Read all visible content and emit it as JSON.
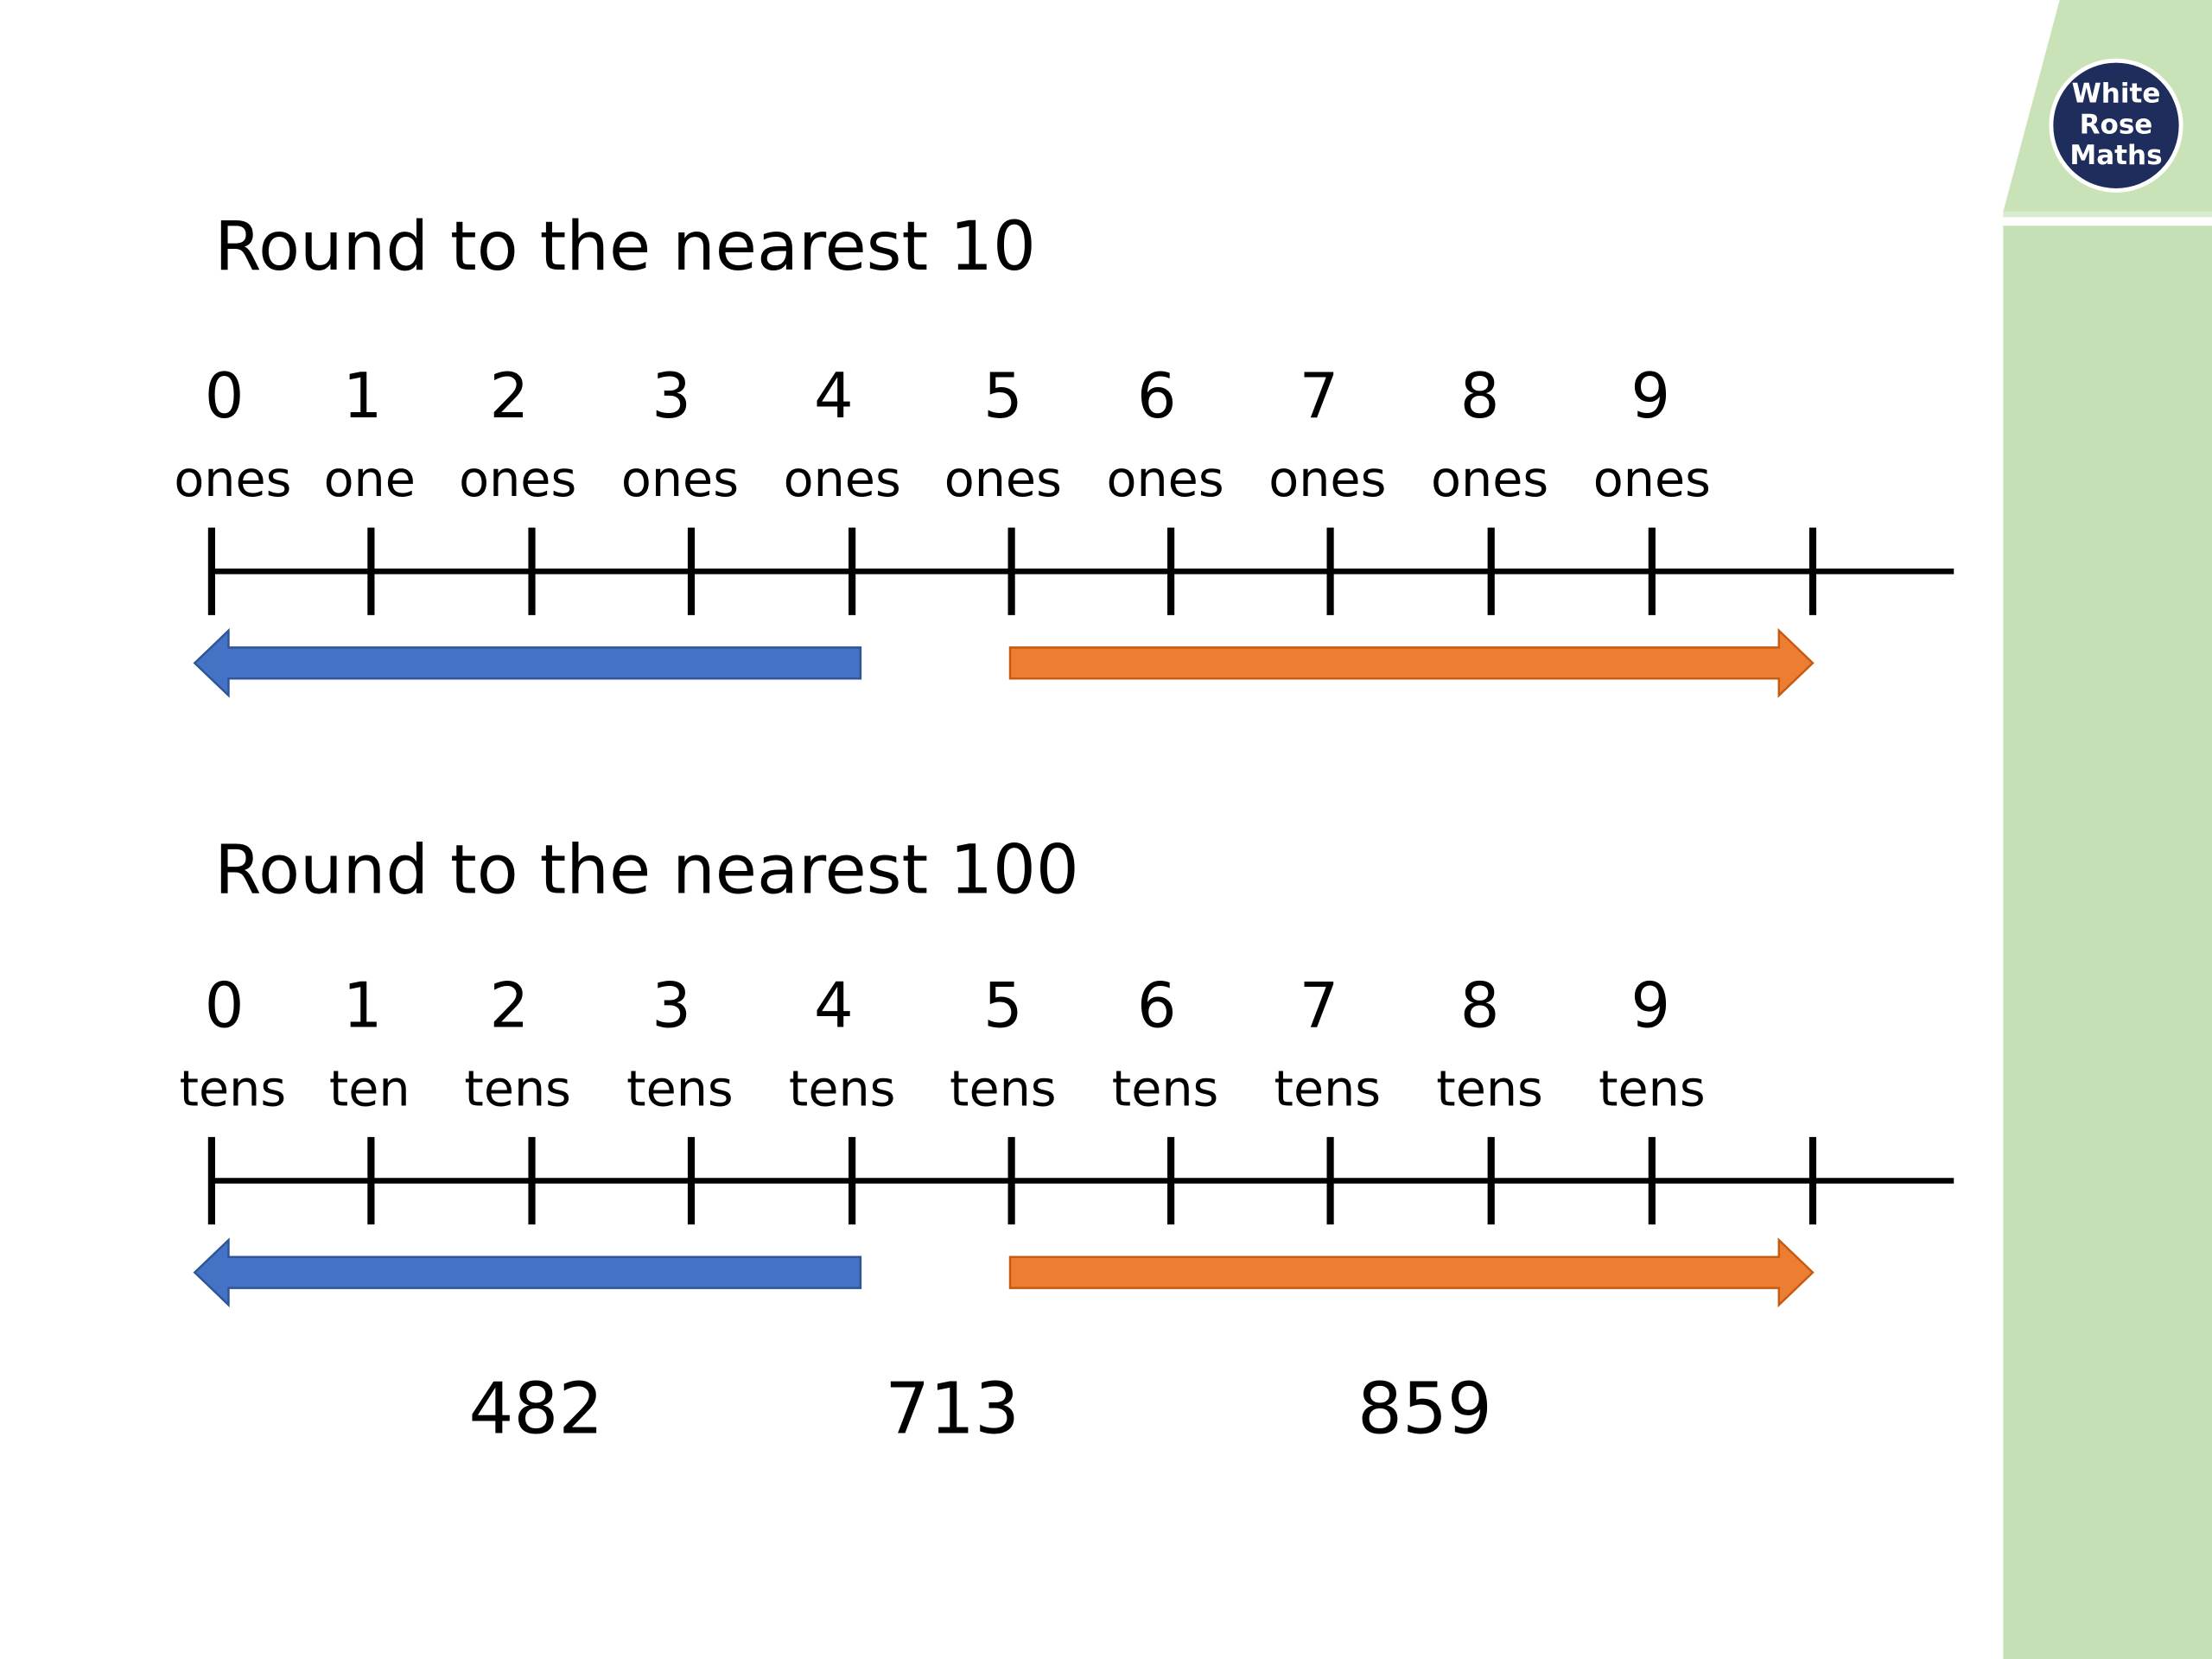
{
  "logo": {
    "lines": [
      "White",
      "Rose",
      "Maths"
    ]
  },
  "sections": [
    {
      "title": "Round to the nearest 10",
      "labels": [
        {
          "number": 0,
          "word": "ones"
        },
        {
          "number": 1,
          "word": "one"
        },
        {
          "number": 2,
          "word": "ones"
        },
        {
          "number": 3,
          "word": "ones"
        },
        {
          "number": 4,
          "word": "ones"
        },
        {
          "number": 5,
          "word": "ones"
        },
        {
          "number": 6,
          "word": "ones"
        },
        {
          "number": 7,
          "word": "ones"
        },
        {
          "number": 8,
          "word": "ones"
        },
        {
          "number": 9,
          "word": "ones"
        }
      ]
    },
    {
      "title": "Round to the nearest 100",
      "labels": [
        {
          "number": 0,
          "word": "tens"
        },
        {
          "number": 1,
          "word": "ten"
        },
        {
          "number": 2,
          "word": "tens"
        },
        {
          "number": 3,
          "word": "tens"
        },
        {
          "number": 4,
          "word": "tens"
        },
        {
          "number": 5,
          "word": "tens"
        },
        {
          "number": 6,
          "word": "tens"
        },
        {
          "number": 7,
          "word": "tens"
        },
        {
          "number": 8,
          "word": "tens"
        },
        {
          "number": 9,
          "word": "tens"
        }
      ]
    }
  ],
  "numbers": [
    482,
    713,
    859
  ]
}
